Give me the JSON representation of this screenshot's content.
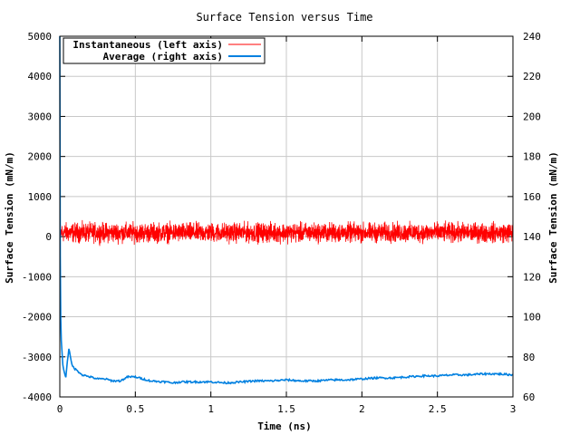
{
  "chart_data": {
    "type": "line",
    "title": "Surface Tension versus Time",
    "xlabel": "Time (ns)",
    "ylabel_left": "Surface Tension (mN/m)",
    "ylabel_right": "Surface Tension (mN/m)",
    "xlim": [
      0,
      3
    ],
    "ylim_left": [
      -4000,
      5000
    ],
    "ylim_right": [
      60,
      240
    ],
    "x_ticks": [
      0,
      0.5,
      1,
      1.5,
      2,
      2.5,
      3
    ],
    "x_tick_labels": [
      "0",
      "0.5",
      "1",
      "1.5",
      "2",
      "2.5",
      "3"
    ],
    "y_left_ticks": [
      -4000,
      -3000,
      -2000,
      -1000,
      0,
      1000,
      2000,
      3000,
      4000,
      5000
    ],
    "y_left_tick_labels": [
      "-4000",
      "-3000",
      "-2000",
      "-1000",
      "0",
      "1000",
      "2000",
      "3000",
      "4000",
      "5000"
    ],
    "y_right_ticks": [
      60,
      80,
      100,
      120,
      140,
      160,
      180,
      200,
      220,
      240
    ],
    "y_right_tick_labels": [
      "60",
      "80",
      "100",
      "120",
      "140",
      "160",
      "180",
      "200",
      "220",
      "240"
    ],
    "grid": true,
    "legend_position": "top-left",
    "series": [
      {
        "name": "Instantaneous (left axis)",
        "axis": "left",
        "color": "#ff0000",
        "mean": 130,
        "band": [
          -250,
          450
        ],
        "initial_spike_max": 5000
      },
      {
        "name": "Average (right axis)",
        "axis": "right",
        "color": "#0080e0",
        "x": [
          0,
          0.003,
          0.006,
          0.01,
          0.02,
          0.03,
          0.04,
          0.05,
          0.06,
          0.08,
          0.1,
          0.15,
          0.2,
          0.25,
          0.3,
          0.35,
          0.4,
          0.45,
          0.5,
          0.55,
          0.6,
          0.7,
          0.75,
          0.8,
          0.9,
          1.0,
          1.1,
          1.2,
          1.3,
          1.4,
          1.5,
          1.6,
          1.7,
          1.8,
          1.9,
          2.0,
          2.1,
          2.2,
          2.3,
          2.4,
          2.5,
          2.6,
          2.7,
          2.8,
          2.9,
          3.0
        ],
        "y": [
          240,
          130,
          100,
          88,
          76,
          72,
          70,
          78,
          84,
          76,
          74,
          71,
          70,
          69,
          69,
          68,
          68,
          70,
          70,
          69,
          68,
          67.5,
          67,
          67.5,
          67.5,
          67.5,
          67,
          67.5,
          68,
          68,
          68.5,
          68,
          68,
          68.5,
          68.5,
          69,
          69.5,
          69.5,
          70,
          70.5,
          70.5,
          71,
          71,
          71.5,
          71.5,
          71
        ]
      }
    ]
  }
}
